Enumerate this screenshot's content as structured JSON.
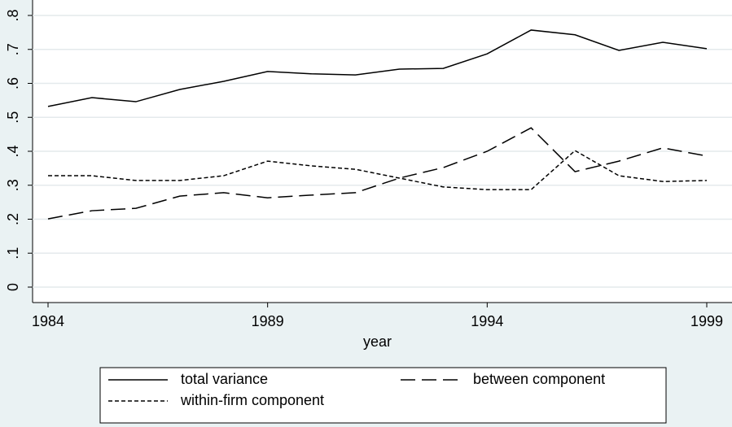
{
  "chart_data": {
    "type": "line",
    "x_label": "year",
    "x": [
      1984,
      1985,
      1986,
      1987,
      1988,
      1989,
      1990,
      1991,
      1992,
      1993,
      1994,
      1995,
      1996,
      1997,
      1998,
      1999
    ],
    "series": [
      {
        "name": "total variance",
        "color": "#000000",
        "dash": "solid",
        "values": [
          0.532,
          0.558,
          0.546,
          0.582,
          0.606,
          0.635,
          0.628,
          0.625,
          0.642,
          0.644,
          0.687,
          0.757,
          0.743,
          0.697,
          0.721,
          0.702
        ]
      },
      {
        "name": "between component",
        "color": "#000000",
        "dash": "dashed",
        "values": [
          0.201,
          0.225,
          0.232,
          0.268,
          0.278,
          0.263,
          0.271,
          0.278,
          0.321,
          0.352,
          0.4,
          0.469,
          0.34,
          0.371,
          0.41,
          0.386
        ]
      },
      {
        "name": "within-firm component",
        "color": "#000000",
        "dash": "dotted",
        "values": [
          0.328,
          0.328,
          0.314,
          0.314,
          0.328,
          0.371,
          0.357,
          0.347,
          0.321,
          0.295,
          0.287,
          0.287,
          0.402,
          0.328,
          0.311,
          0.314
        ]
      }
    ],
    "xlim": [
      1984,
      1999
    ],
    "xticks": [
      1984,
      1989,
      1994,
      1999
    ],
    "ylim": [
      0,
      0.8
    ],
    "yticks": [
      0,
      {
        "value": 0.1,
        "label": ".1"
      },
      {
        "value": 0.2,
        "label": ".2"
      },
      {
        "value": 0.3,
        "label": ".3"
      },
      {
        "value": 0.4,
        "label": ".4"
      },
      {
        "value": 0.5,
        "label": ".5"
      },
      {
        "value": 0.6,
        "label": ".6"
      },
      {
        "value": 0.7,
        "label": ".7"
      },
      {
        "value": 0.8,
        "label": ".8"
      }
    ],
    "grid": true,
    "legend": "bottom"
  }
}
